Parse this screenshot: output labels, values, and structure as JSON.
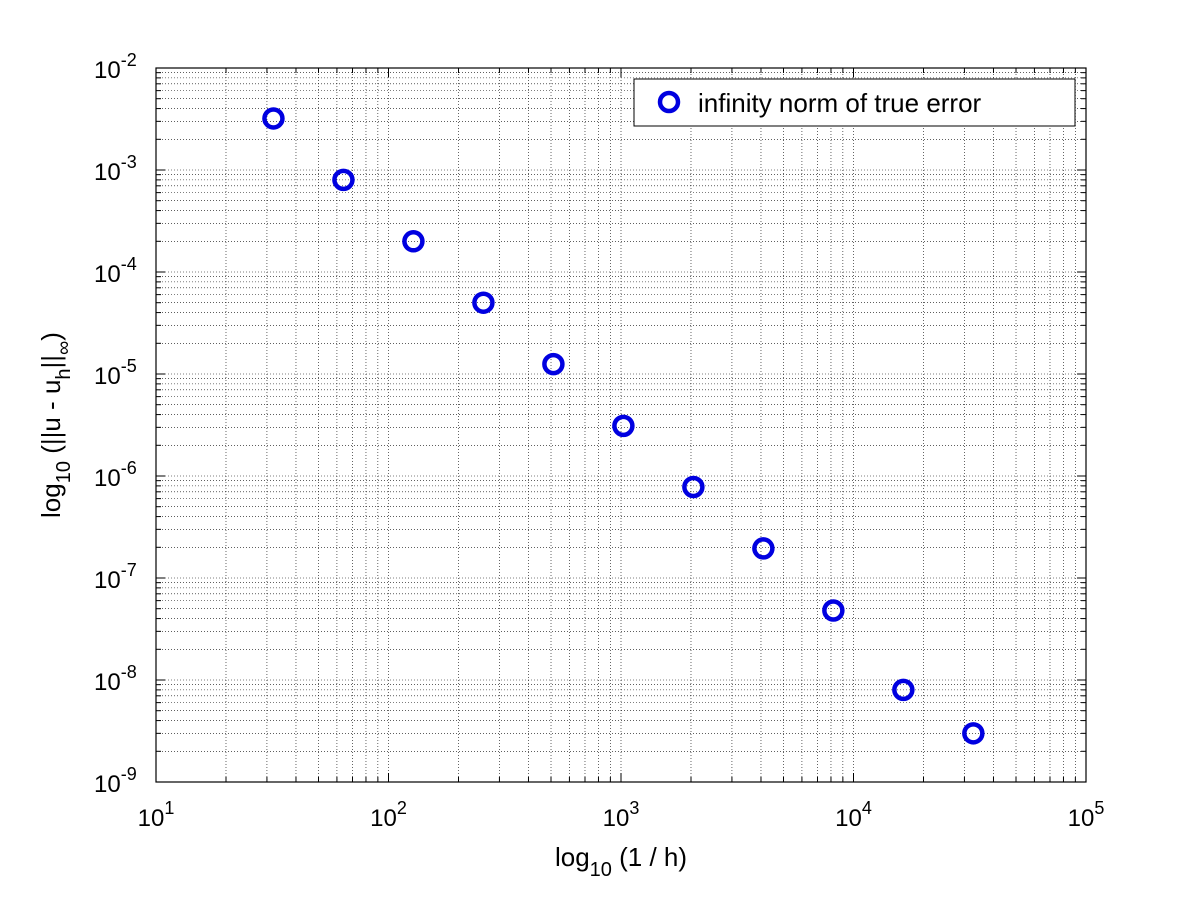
{
  "chart_data": {
    "type": "scatter",
    "x_scale": "log",
    "y_scale": "log",
    "xlim": [
      10,
      100000
    ],
    "ylim": [
      1e-09,
      0.01
    ],
    "grid": true,
    "legend_position": "top-right",
    "xlabel": {
      "base": "log",
      "sub": "10",
      "rest": " (1 / h)"
    },
    "ylabel": {
      "base": "log",
      "sub": "10",
      "p1": " (||u - u",
      "sub2": "h",
      "p2": "||",
      "sub3": "∞",
      "p3": ")"
    },
    "x_ticks": [
      {
        "value": 10,
        "base": "10",
        "exp": "1"
      },
      {
        "value": 100,
        "base": "10",
        "exp": "2"
      },
      {
        "value": 1000,
        "base": "10",
        "exp": "3"
      },
      {
        "value": 10000,
        "base": "10",
        "exp": "4"
      },
      {
        "value": 100000,
        "base": "10",
        "exp": "5"
      }
    ],
    "y_ticks": [
      {
        "value": 1e-09,
        "base": "10",
        "exp": "-9"
      },
      {
        "value": 1e-08,
        "base": "10",
        "exp": "-8"
      },
      {
        "value": 1e-07,
        "base": "10",
        "exp": "-7"
      },
      {
        "value": 1e-06,
        "base": "10",
        "exp": "-6"
      },
      {
        "value": 1e-05,
        "base": "10",
        "exp": "-5"
      },
      {
        "value": 0.0001,
        "base": "10",
        "exp": "-4"
      },
      {
        "value": 0.001,
        "base": "10",
        "exp": "-3"
      },
      {
        "value": 0.01,
        "base": "10",
        "exp": "-2"
      }
    ],
    "series": [
      {
        "name": "infinity norm of true error",
        "color": "#0000e0",
        "marker": "circle-open",
        "x": [
          32,
          64,
          128,
          256,
          512,
          1024,
          2048,
          4096,
          8192,
          16384,
          32768
        ],
        "y": [
          0.0032,
          0.0008,
          0.0002,
          5e-05,
          1.25e-05,
          3.1e-06,
          7.8e-07,
          1.95e-07,
          4.8e-08,
          8e-09,
          3e-09
        ]
      }
    ]
  }
}
